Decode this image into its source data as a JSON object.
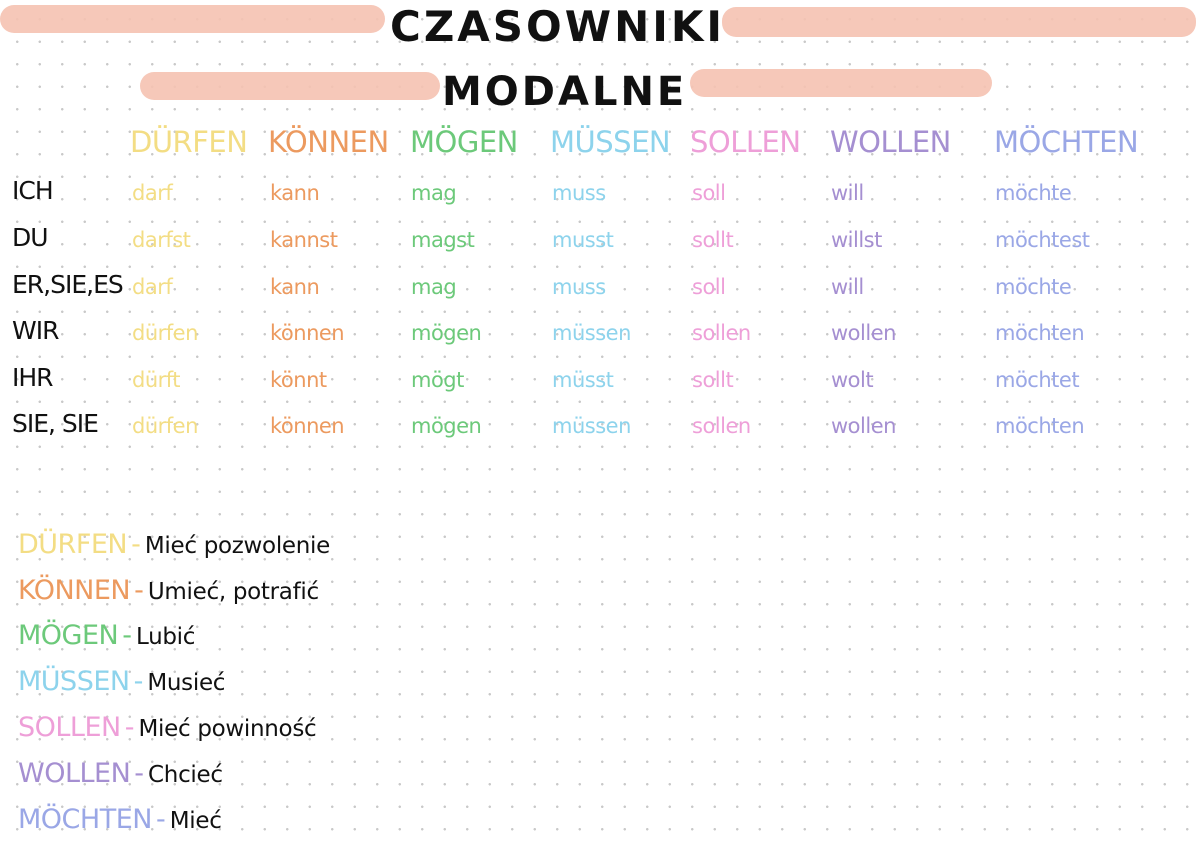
{
  "title": {
    "line1": "CZASOWNIKI",
    "line2": "MODALNE"
  },
  "colors": {
    "band": "#f5c2b1",
    "dürfen": "#f3dd84",
    "können": "#ec9a5f",
    "mögen": "#6cc97a",
    "müssen": "#8dd3ec",
    "sollen": "#ee9fd8",
    "wollen": "#a58fd1",
    "möchten": "#9aa7e6"
  },
  "table": {
    "headers": [
      "DÜRFEN",
      "KÖNNEN",
      "MÖGEN",
      "MÜSSEN",
      "SOLLEN",
      "WOLLEN",
      "MÖCHTEN"
    ],
    "pronouns": [
      "ICH",
      "DU",
      "ER,SIE,ES",
      "WIR",
      "IHR",
      "SIE, SIE"
    ],
    "rows": [
      [
        "darf",
        "kann",
        "mag",
        "muss",
        "soll",
        "will",
        "möchte"
      ],
      [
        "darfst",
        "kannst",
        "magst",
        "musst",
        "sollt",
        "willst",
        "möchtest"
      ],
      [
        "darf",
        "kann",
        "mag",
        "muss",
        "soll",
        "will",
        "möchte"
      ],
      [
        "dürfen",
        "können",
        "mögen",
        "müssen",
        "sollen",
        "wollen",
        "möchten"
      ],
      [
        "dürft",
        "könnt",
        "mögt",
        "müsst",
        "sollt",
        "wolt",
        "möchtet"
      ],
      [
        "dürfen",
        "können",
        "mögen",
        "müssen",
        "sollen",
        "wollen",
        "möchten"
      ]
    ]
  },
  "legend": [
    {
      "verb": "DÜRFEN",
      "dash": "-",
      "meaning": "Mieć pozwolenie"
    },
    {
      "verb": "KÖNNEN",
      "dash": "-",
      "meaning": "Umieć, potrafić"
    },
    {
      "verb": "MÖGEN",
      "dash": "-",
      "meaning": "Lubić"
    },
    {
      "verb": "MÜSSEN",
      "dash": "-",
      "meaning": "Musieć"
    },
    {
      "verb": "SOLLEN",
      "dash": "-",
      "meaning": "Mieć powinność"
    },
    {
      "verb": "WOLLEN",
      "dash": "-",
      "meaning": "Chcieć"
    },
    {
      "verb": "MÖCHTEN",
      "dash": "-",
      "meaning": "Mieć"
    }
  ]
}
